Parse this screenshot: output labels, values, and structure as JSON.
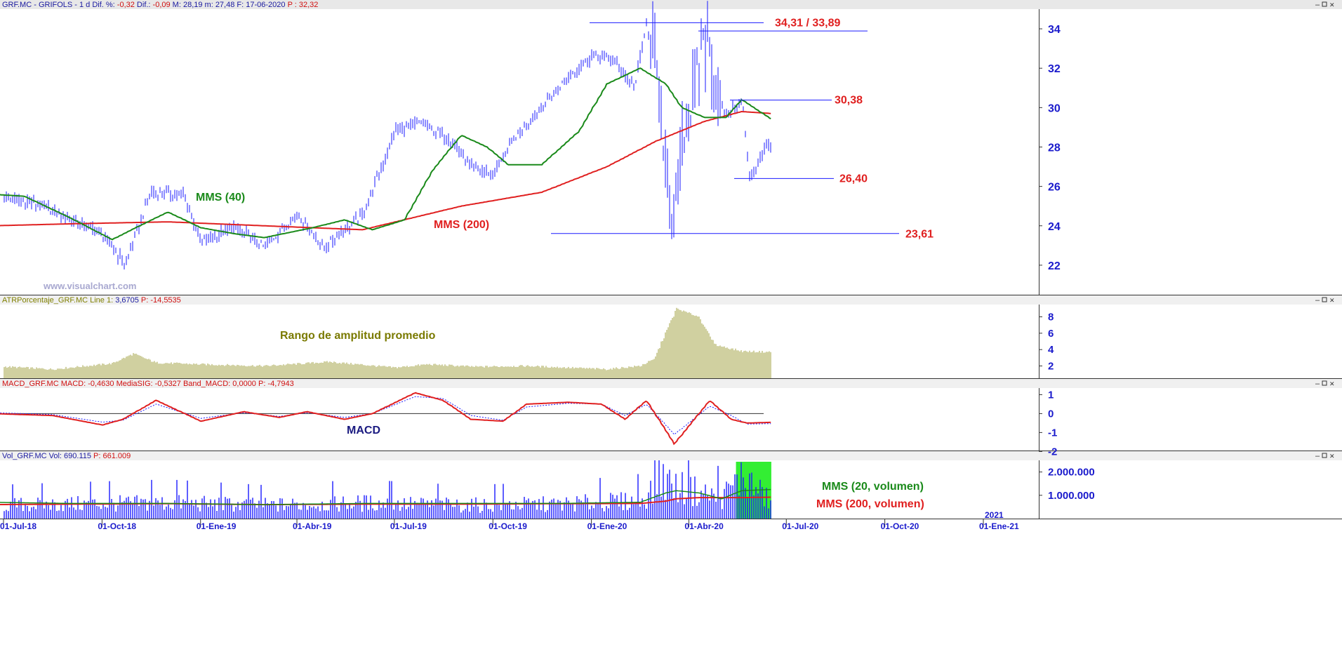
{
  "panels": {
    "price": {
      "header": [
        {
          "t": "GRF.MC - GRIFOLS -  1 d  Dif. %: ",
          "c": "#1a1aa0"
        },
        {
          "t": "-0,32",
          "c": "#d01010"
        },
        {
          "t": "  Dif.: ",
          "c": "#1a1aa0"
        },
        {
          "t": "-0,09",
          "c": "#d01010"
        },
        {
          "t": "  M: 28,19  m: 27,48  F: 17-06-2020  ",
          "c": "#1a1aa0"
        },
        {
          "t": "P : 32,32",
          "c": "#d01010"
        }
      ],
      "y_ticks": [
        "22",
        "24",
        "26",
        "28",
        "30",
        "32",
        "34"
      ],
      "watermark": "www.visualchart.com"
    },
    "atr": {
      "header": [
        {
          "t": "ATRPorcentaje_GRF.MC  Line 1: ",
          "c": "#808000"
        },
        {
          "t": "3,6705",
          "c": "#1a1aa0"
        },
        {
          "t": "  P: -14,5535",
          "c": "#d01010"
        }
      ],
      "y_ticks": [
        "2",
        "4",
        "6",
        "8"
      ],
      "label": "Rango de amplitud promedio"
    },
    "macd": {
      "header": [
        {
          "t": "MACD_GRF.MC  MACD: -0,4630  MediaSIG: -0,5327  Band_MACD: 0,0000  P: -4,7943",
          "c": "#d01010"
        }
      ],
      "y_ticks": [
        "1",
        "0",
        "-1",
        "-2"
      ],
      "label": "MACD"
    },
    "vol": {
      "header": [
        {
          "t": "Vol_GRF.MC  Vol: 690.115  ",
          "c": "#1a1aa0"
        },
        {
          "t": "P: 661.009",
          "c": "#d01010"
        }
      ],
      "y_ticks": [
        "1.000.000",
        "2.000.000"
      ]
    }
  },
  "x_ticks": [
    "01-Jul-18",
    "01-Oct-18",
    "01-Ene-19",
    "01-Abr-19",
    "01-Jul-19",
    "01-Oct-19",
    "01-Ene-20",
    "01-Abr-20",
    "01-Jul-20",
    "01-Oct-20",
    "01-Ene-21"
  ],
  "year_marker": "2021",
  "annotations": {
    "mms40": "MMS (40)",
    "mms200": "MMS (200)",
    "lvl_34": "34,31 / 33,89",
    "lvl_30": "30,38",
    "lvl_26": "26,40",
    "lvl_23": "23,61",
    "vol_mms20": "MMS (20, volumen)",
    "vol_mms200": "MMS (200, volumen)"
  },
  "colors": {
    "price_bars": "#1a1aff",
    "mms40": "#1a8a1a",
    "mms200": "#e02020",
    "atr_bars": "#a0a040",
    "macd": "#e02020",
    "macd_signal": "#1a1aff",
    "volume_bars": "#1a1aff",
    "volume_highlight": "#33ee33",
    "level_lines": "#1a1aff",
    "level_labels": "#e02020"
  },
  "chart_data": {
    "type": "ohlc",
    "price": {
      "x": [
        "2018-06-20",
        "2018-08-01",
        "2018-10-01",
        "2018-10-22",
        "2018-11-15",
        "2018-12-15",
        "2019-01-01",
        "2019-02-01",
        "2019-03-01",
        "2019-04-01",
        "2019-04-25",
        "2019-05-31",
        "2019-06-20",
        "2019-07-01",
        "2019-07-25",
        "2019-08-20",
        "2019-09-10",
        "2019-10-01",
        "2019-10-20",
        "2019-11-15",
        "2019-12-10",
        "2020-01-01",
        "2020-01-20",
        "2020-02-10",
        "2020-02-21",
        "2020-03-05",
        "2020-03-16",
        "2020-03-25",
        "2020-04-03",
        "2020-04-14",
        "2020-05-05",
        "2020-05-20",
        "2020-05-27",
        "2020-06-10",
        "2020-06-17"
      ],
      "close": [
        25.6,
        25.1,
        23.6,
        22.0,
        25.7,
        25.6,
        23.2,
        23.9,
        22.9,
        24.6,
        22.9,
        24.5,
        27.2,
        28.8,
        29.2,
        28.5,
        27.0,
        26.6,
        28.4,
        30.0,
        31.6,
        32.6,
        32.5,
        31.0,
        34.31,
        30.5,
        23.61,
        28.5,
        30.0,
        33.89,
        29.5,
        30.38,
        26.4,
        27.9,
        28.19
      ],
      "levels": [
        34.31,
        33.89,
        30.38,
        26.4,
        23.61
      ],
      "y_range": [
        20.5,
        35
      ]
    },
    "mms40": {
      "x": [
        "2018-06-20",
        "2018-07-20",
        "2018-09-01",
        "2018-10-10",
        "2018-11-01",
        "2018-12-01",
        "2019-01-01",
        "2019-02-01",
        "2019-03-01",
        "2019-04-15",
        "2019-05-15",
        "2019-06-10",
        "2019-07-10",
        "2019-08-05",
        "2019-09-01",
        "2019-09-25",
        "2019-10-15",
        "2019-11-15",
        "2019-12-20",
        "2020-01-15",
        "2020-02-15",
        "2020-03-10",
        "2020-03-25",
        "2020-04-15",
        "2020-05-05",
        "2020-05-20",
        "2020-06-17"
      ],
      "y": [
        25.6,
        25.5,
        24.4,
        23.3,
        23.9,
        24.7,
        23.9,
        23.6,
        23.4,
        23.9,
        24.3,
        23.8,
        24.3,
        26.8,
        28.6,
        28.0,
        27.1,
        27.1,
        28.8,
        31.2,
        32.0,
        31.2,
        30.0,
        29.5,
        29.5,
        30.4,
        29.4
      ]
    },
    "mms200": {
      "x": [
        "2018-06-20",
        "2018-09-01",
        "2018-12-01",
        "2019-03-01",
        "2019-06-01",
        "2019-09-01",
        "2019-11-15",
        "2020-01-15",
        "2020-03-01",
        "2020-04-15",
        "2020-05-20",
        "2020-06-17"
      ],
      "y": [
        24.0,
        24.1,
        24.2,
        24.0,
        23.8,
        25.0,
        25.7,
        27.0,
        28.3,
        29.3,
        29.8,
        29.7
      ]
    },
    "atr": {
      "x": [
        "2018-06-20",
        "2018-08-15",
        "2018-10-10",
        "2018-10-30",
        "2018-11-20",
        "2019-01-01",
        "2019-03-01",
        "2019-05-01",
        "2019-07-01",
        "2019-08-01",
        "2019-09-15",
        "2019-11-01",
        "2020-01-15",
        "2020-02-15",
        "2020-02-28",
        "2020-03-20",
        "2020-04-10",
        "2020-04-25",
        "2020-05-20",
        "2020-06-17"
      ],
      "y": [
        2.0,
        1.6,
        2.3,
        3.5,
        2.4,
        2.2,
        2.0,
        2.5,
        1.8,
        2.2,
        1.9,
        2.0,
        1.6,
        2.0,
        2.8,
        9.0,
        8.0,
        4.6,
        3.8,
        3.7
      ],
      "y_range": [
        0.5,
        9.5
      ]
    },
    "macd": {
      "x": [
        "2018-06-20",
        "2018-08-15",
        "2018-10-01",
        "2018-10-20",
        "2018-11-20",
        "2019-01-01",
        "2019-02-10",
        "2019-03-15",
        "2019-04-10",
        "2019-05-15",
        "2019-06-10",
        "2019-07-20",
        "2019-08-15",
        "2019-09-10",
        "2019-10-10",
        "2019-11-01",
        "2019-12-10",
        "2020-01-10",
        "2020-02-01",
        "2020-02-21",
        "2020-03-18",
        "2020-04-20",
        "2020-05-10",
        "2020-05-25",
        "2020-06-17"
      ],
      "macd": [
        0.0,
        -0.1,
        -0.6,
        -0.3,
        0.7,
        -0.4,
        0.1,
        -0.2,
        0.1,
        -0.3,
        0.0,
        1.1,
        0.7,
        -0.3,
        -0.4,
        0.5,
        0.6,
        0.5,
        -0.3,
        0.7,
        -1.6,
        0.7,
        -0.3,
        -0.5,
        -0.46
      ],
      "signal": [
        0.05,
        -0.05,
        -0.45,
        -0.35,
        0.5,
        -0.25,
        0.05,
        -0.15,
        0.05,
        -0.2,
        0.0,
        0.9,
        0.8,
        -0.1,
        -0.35,
        0.35,
        0.55,
        0.5,
        -0.1,
        0.5,
        -1.1,
        0.4,
        -0.1,
        -0.55,
        -0.53
      ],
      "y_range": [
        -1.95,
        1.35
      ]
    },
    "volume": {
      "x": [
        "2018-06-20",
        "2018-09-01",
        "2018-12-01",
        "2019-03-01",
        "2019-06-01",
        "2019-09-01",
        "2019-12-01",
        "2020-02-15",
        "2020-03-10",
        "2020-03-20",
        "2020-04-10",
        "2020-05-01",
        "2020-05-20",
        "2020-06-17"
      ],
      "y": [
        600000,
        650000,
        700000,
        600000,
        700000,
        600000,
        650000,
        800000,
        1800000,
        1400000,
        1200000,
        900000,
        1900000,
        690115
      ],
      "mms20": [
        700000,
        650000,
        650000,
        600000,
        650000,
        650000,
        650000,
        700000,
        1100000,
        1200000,
        1100000,
        850000,
        1200000,
        1250000
      ],
      "mms200": [
        600000,
        620000,
        640000,
        600000,
        620000,
        620000,
        640000,
        650000,
        750000,
        850000,
        900000,
        900000,
        900000,
        920000
      ],
      "y_range": [
        0,
        2500000
      ]
    }
  }
}
